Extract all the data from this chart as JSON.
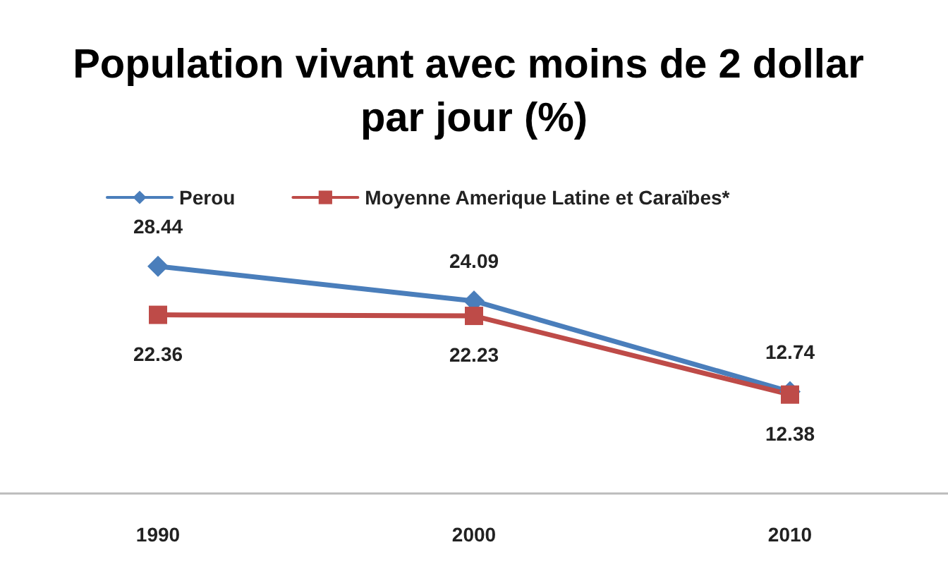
{
  "chart_data": {
    "type": "line",
    "title": "Population vivant avec moins de 2 dollar par jour (%)",
    "categories": [
      "1990",
      "2000",
      "2010"
    ],
    "tick_labels": "x",
    "series": [
      {
        "name": "Perou",
        "color": "#4a7ebb",
        "marker": "diamond",
        "values": [
          28.44,
          24.09,
          12.74
        ]
      },
      {
        "name": "Moyenne Amerique Latine et Caraïbes*",
        "color": "#be4b48",
        "marker": "square",
        "values": [
          22.36,
          22.23,
          12.38
        ]
      }
    ],
    "data_labels": true,
    "grid": false,
    "legend": "top",
    "line_style": "solid"
  }
}
